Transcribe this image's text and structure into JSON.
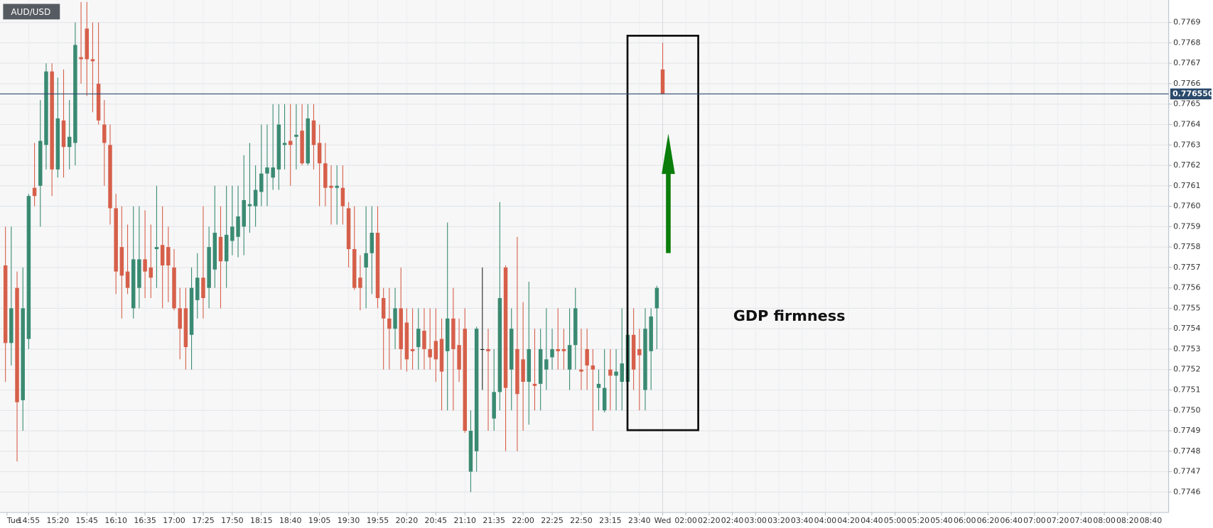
{
  "chart_data": {
    "type": "candlestick",
    "symbol": "AUD/USD",
    "annotation": "GDP firmness",
    "up_color": "#3a8a72",
    "down_color": "#d65f4a",
    "doji_color": "#222222",
    "grid": true,
    "ylim": [
      0.7745,
      0.77701
    ],
    "yticks": [
      0.7746,
      0.7747,
      0.7748,
      0.7749,
      {
        "value": 0.775,
        "label": "0.7750"
      },
      0.7751,
      0.7752,
      0.7753,
      0.7754,
      0.7755,
      0.7756,
      0.7757,
      0.7758,
      0.7759,
      {
        "value": 0.776,
        "label": "0.7760"
      },
      0.7761,
      0.7762,
      0.7763,
      0.7764,
      0.7765,
      0.7766,
      0.7767,
      0.7768,
      0.7769
    ],
    "last_price": {
      "value": 0.77655,
      "label": "0.776550"
    },
    "x_labels": [
      "Tue",
      "14:55",
      "15:20",
      "15:45",
      "16:10",
      "16:35",
      "17:00",
      "17:25",
      "17:50",
      "18:15",
      "18:40",
      "19:05",
      "19:30",
      "19:55",
      "20:20",
      "20:45",
      "21:10",
      "21:35",
      "22:00",
      "22:25",
      "22:50",
      "23:15",
      "23:40",
      "Wed",
      "02:00",
      "02:20",
      "02:40",
      "03:00",
      "03:20",
      "03:40",
      "04:00",
      "04:20",
      "04:40",
      "05:00",
      "05:20",
      "05:40",
      "06:00",
      "06:20",
      "06:40",
      "07:00",
      "07:20",
      "07:40",
      "08:00",
      "08:20",
      "08:40"
    ],
    "open": [
      0.77571,
      0.77533,
      0.7756,
      0.77505,
      0.77535,
      0.77609,
      0.7761,
      0.7763,
      0.77666,
      0.77618,
      0.77642,
      0.77629,
      0.77631,
      0.77673,
      0.77687,
      0.77672,
      0.7766,
      0.7764,
      0.7763,
      0.77599,
      0.7758,
      0.77568,
      0.7755,
      0.7756,
      0.77574,
      0.7757,
      0.77579,
      0.77581,
      0.7758,
      0.7757,
      0.7755,
      0.7755,
      0.77537,
      0.77554,
      0.77565,
      0.7756,
      0.77569,
      0.77585,
      0.77573,
      0.77583,
      0.77585,
      0.7759,
      0.776,
      0.776,
      0.77607,
      0.77616,
      0.77614,
      0.77618,
      0.7763,
      0.77632,
      0.77634,
      0.77637,
      0.77621,
      0.77642,
      0.77631,
      0.77621,
      0.7761,
      0.77609,
      0.77609,
      0.77599,
      0.77579,
      0.77565,
      0.7757,
      0.77577,
      0.77587,
      0.77555,
      0.77545,
      0.7754,
      0.7755,
      0.77543,
      0.7753,
      0.77531,
      0.77539,
      0.7753,
      0.77534,
      0.77535,
      0.77529,
      0.77545,
      0.77532,
      0.7754,
      0.7747,
      0.7748,
      0.7753,
      0.7753,
      0.77496,
      0.77509,
      0.7757,
      0.7752,
      0.7753,
      0.77525,
      0.77514,
      0.77513,
      0.77513,
      0.7752,
      0.77526,
      0.7753,
      0.7753,
      0.7752,
      0.77532,
      0.7752,
      0.7753,
      0.77522,
      0.77511,
      0.775,
      0.7752,
      0.77517,
      0.77514,
      0.77514,
      0.77537,
      0.7753,
      0.7751,
      0.77529,
      0.7755,
      0.77667
    ],
    "high": [
      0.7759,
      0.7759,
      0.77568,
      0.7757,
      0.77606,
      0.77631,
      0.77652,
      0.7767,
      0.7767,
      0.77663,
      0.77667,
      0.77652,
      0.7769,
      0.777,
      0.777,
      0.7769,
      0.7769,
      0.77652,
      0.7764,
      0.77606,
      0.776,
      0.77591,
      0.776,
      0.776,
      0.77598,
      0.77591,
      0.7761,
      0.776,
      0.7759,
      0.77579,
      0.7756,
      0.7756,
      0.7757,
      0.77577,
      0.776,
      0.7759,
      0.7761,
      0.776,
      0.7761,
      0.7761,
      0.7761,
      0.77625,
      0.77631,
      0.7762,
      0.7764,
      0.7764,
      0.7765,
      0.7765,
      0.7765,
      0.7765,
      0.7765,
      0.7765,
      0.7765,
      0.7765,
      0.7764,
      0.77631,
      0.7762,
      0.7762,
      0.7762,
      0.77602,
      0.776,
      0.77576,
      0.776,
      0.776,
      0.776,
      0.7756,
      0.7756,
      0.7756,
      0.7757,
      0.7755,
      0.7755,
      0.7755,
      0.7755,
      0.7755,
      0.7755,
      0.77545,
      0.77592,
      0.7756,
      0.77545,
      0.7755,
      0.775,
      0.77541,
      0.7757,
      0.7754,
      0.7753,
      0.77602,
      0.77571,
      0.7755,
      0.77585,
      0.77553,
      0.77563,
      0.7754,
      0.7754,
      0.7755,
      0.7754,
      0.7755,
      0.7754,
      0.7755,
      0.7756,
      0.7754,
      0.7754,
      0.7753,
      0.7752,
      0.7753,
      0.7753,
      0.7753,
      0.7755,
      0.7755,
      0.7755,
      0.7754,
      0.7755,
      0.7755,
      0.77561,
      0.7768
    ],
    "low": [
      0.77514,
      0.77522,
      0.77475,
      0.7749,
      0.7753,
      0.776,
      0.7759,
      0.77618,
      0.77605,
      0.77614,
      0.77614,
      0.77618,
      0.7762,
      0.7766,
      0.77654,
      0.77646,
      0.7764,
      0.7761,
      0.77591,
      0.77557,
      0.77545,
      0.77557,
      0.77545,
      0.7755,
      0.77555,
      0.77555,
      0.7756,
      0.7755,
      0.77553,
      0.77549,
      0.77525,
      0.7752,
      0.7752,
      0.77545,
      0.77545,
      0.7755,
      0.7756,
      0.7755,
      0.7756,
      0.77576,
      0.77575,
      0.77576,
      0.77587,
      0.7759,
      0.776,
      0.776,
      0.77608,
      0.77608,
      0.77618,
      0.7761,
      0.77618,
      0.7762,
      0.7762,
      0.77618,
      0.776,
      0.776,
      0.77591,
      0.77591,
      0.77591,
      0.7757,
      0.77559,
      0.77549,
      0.7755,
      0.77557,
      0.7755,
      0.7752,
      0.7752,
      0.7753,
      0.7752,
      0.77519,
      0.7752,
      0.7752,
      0.7752,
      0.7752,
      0.77514,
      0.775,
      0.775,
      0.775,
      0.77514,
      0.77489,
      0.7746,
      0.7747,
      0.7751,
      0.7749,
      0.7749,
      0.775,
      0.7748,
      0.775,
      0.7748,
      0.7749,
      0.77493,
      0.775,
      0.775,
      0.7751,
      0.7752,
      0.7752,
      0.7752,
      0.7751,
      0.7752,
      0.7751,
      0.7751,
      0.7749,
      0.775,
      0.77499,
      0.775,
      0.775,
      0.775,
      0.7749,
      0.7751,
      0.775,
      0.775,
      0.7751,
      0.7753,
      0.77655
    ],
    "close": [
      0.77533,
      0.7755,
      0.77504,
      0.7755,
      0.77605,
      0.77605,
      0.77632,
      0.77666,
      0.77618,
      0.77643,
      0.77629,
      0.77634,
      0.77679,
      0.77672,
      0.77672,
      0.77671,
      0.77642,
      0.77631,
      0.77599,
      0.77568,
      0.77566,
      0.7756,
      0.77574,
      0.77574,
      0.77568,
      0.77565,
      0.7758,
      0.77571,
      0.77571,
      0.7755,
      0.7754,
      0.77531,
      0.7756,
      0.77565,
      0.77555,
      0.7758,
      0.77587,
      0.77573,
      0.77586,
      0.7759,
      0.77595,
      0.77603,
      0.77601,
      0.77608,
      0.77616,
      0.77619,
      0.77619,
      0.7764,
      0.77631,
      0.7763,
      0.77635,
      0.77621,
      0.77643,
      0.7763,
      0.77621,
      0.77609,
      0.77609,
      0.7761,
      0.776,
      0.77579,
      0.7756,
      0.7756,
      0.77577,
      0.77587,
      0.77555,
      0.77545,
      0.7754,
      0.7755,
      0.7753,
      0.77525,
      0.77529,
      0.7754,
      0.7753,
      0.77526,
      0.77525,
      0.77519,
      0.77545,
      0.7753,
      0.7752,
      0.7749,
      0.7749,
      0.7754,
      0.7753,
      0.77529,
      0.77509,
      0.77555,
      0.77511,
      0.7754,
      0.77508,
      0.77514,
      0.7753,
      0.77512,
      0.7753,
      0.77525,
      0.7753,
      0.77529,
      0.77529,
      0.77532,
      0.7755,
      0.77519,
      0.77522,
      0.7752,
      0.77513,
      0.77511,
      0.77517,
      0.77519,
      0.77523,
      0.77537,
      0.7752,
      0.77527,
      0.7754,
      0.77546,
      0.7756,
      0.77655
    ]
  }
}
